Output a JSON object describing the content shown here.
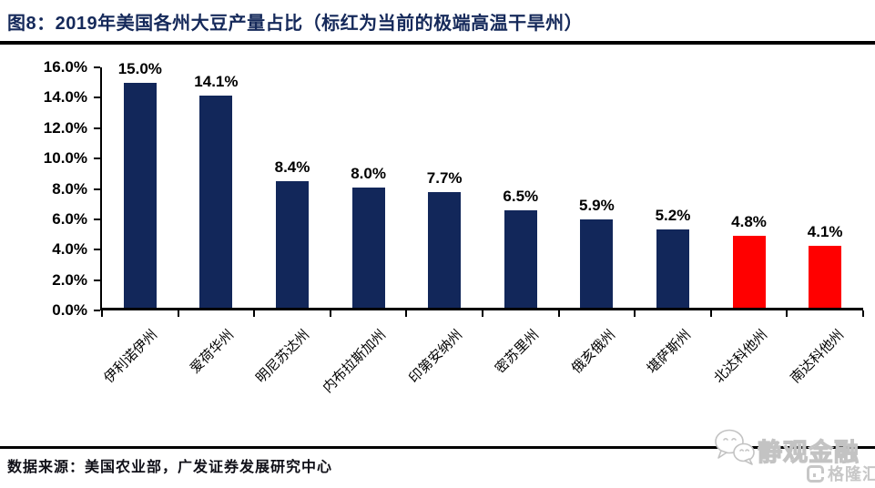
{
  "header": {
    "title": "图8：2019年美国各州大豆产量占比（标红为当前的极端高温干旱州）"
  },
  "chart_data": {
    "type": "bar",
    "title": "2019年美国各州大豆产量占比（标红为当前的极端高温干旱州）",
    "xlabel": "",
    "ylabel": "",
    "categories": [
      "伊利诺伊州",
      "爱荷华州",
      "明尼苏达州",
      "内布拉斯加州",
      "印第安纳州",
      "密苏里州",
      "俄亥俄州",
      "堪萨斯州",
      "北达科他州",
      "南达科他州"
    ],
    "values": [
      15.0,
      14.1,
      8.4,
      8.0,
      7.7,
      6.5,
      5.9,
      5.2,
      4.8,
      4.1
    ],
    "value_labels": [
      "15.0%",
      "14.1%",
      "8.4%",
      "8.0%",
      "7.7%",
      "6.5%",
      "5.9%",
      "5.2%",
      "4.8%",
      "4.1%"
    ],
    "highlight_indices": [
      8,
      9
    ],
    "default_color": "#12275a",
    "highlight_color": "#ff0000",
    "y_ticks": [
      "16.0%",
      "14.0%",
      "12.0%",
      "10.0%",
      "8.0%",
      "6.0%",
      "4.0%",
      "2.0%",
      "0.0%"
    ],
    "ylim": [
      0,
      16
    ],
    "grid": false,
    "legend_position": "none"
  },
  "footer": {
    "source": "数据来源：美国农业部，广发证券发展研究中心"
  },
  "watermark": {
    "brand": "静观金融",
    "logo_text": "格隆汇",
    "icons": [
      "wechat-chat-bubbles-icon",
      "gelonghui-g-icon"
    ]
  },
  "colors": {
    "title": "#15295a",
    "bar_navy": "#12275a",
    "bar_red": "#ff0000",
    "axis": "#000000",
    "watermark_gray": "#c7c7c7"
  }
}
